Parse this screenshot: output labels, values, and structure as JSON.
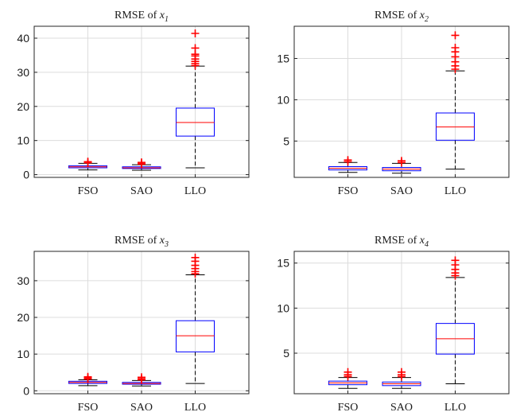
{
  "chart_data": [
    {
      "type": "box",
      "title": "RMSE of x1",
      "title_text": "RMSE of ",
      "title_var": "x",
      "title_sub": "1",
      "categories": [
        "FSO",
        "SAO",
        "LLO"
      ],
      "yticks": [
        0,
        10,
        20,
        30,
        40
      ],
      "ylim": [
        -0.8,
        43.5
      ],
      "grid": true,
      "boxes": [
        {
          "name": "FSO",
          "whisker_low": 1.4,
          "q1": 2.0,
          "median": 2.3,
          "q3": 2.6,
          "whisker_high": 3.3,
          "outliers": [
            3.5,
            3.8
          ]
        },
        {
          "name": "SAO",
          "whisker_low": 1.3,
          "q1": 1.8,
          "median": 2.0,
          "q3": 2.3,
          "whisker_high": 2.9,
          "outliers": [
            3.1,
            3.3,
            3.6
          ]
        },
        {
          "name": "LLO",
          "whisker_low": 2.0,
          "q1": 11.3,
          "median": 15.3,
          "q3": 19.5,
          "whisker_high": 31.8,
          "outliers": [
            32.0,
            32.6,
            33.2,
            33.9,
            34.8,
            35.3,
            37.1,
            41.4
          ]
        }
      ]
    },
    {
      "type": "box",
      "title": "RMSE of x2",
      "title_text": "RMSE of ",
      "title_var": "x",
      "title_sub": "2",
      "categories": [
        "FSO",
        "SAO",
        "LLO"
      ],
      "yticks": [
        5,
        10,
        15
      ],
      "ylim": [
        0.6,
        18.9
      ],
      "grid": true,
      "boxes": [
        {
          "name": "FSO",
          "whisker_low": 1.2,
          "q1": 1.5,
          "median": 1.7,
          "q3": 1.9,
          "whisker_high": 2.4,
          "outliers": [
            2.5,
            2.7
          ]
        },
        {
          "name": "SAO",
          "whisker_low": 1.1,
          "q1": 1.4,
          "median": 1.6,
          "q3": 1.8,
          "whisker_high": 2.3,
          "outliers": [
            2.4,
            2.6
          ]
        },
        {
          "name": "LLO",
          "whisker_low": 1.6,
          "q1": 5.1,
          "median": 6.7,
          "q3": 8.4,
          "whisker_high": 13.5,
          "outliers": [
            13.7,
            14.1,
            14.6,
            15.2,
            15.8,
            16.3,
            17.8
          ]
        }
      ]
    },
    {
      "type": "box",
      "title": "RMSE of x3",
      "title_text": "RMSE of ",
      "title_var": "x",
      "title_sub": "3",
      "categories": [
        "FSO",
        "SAO",
        "LLO"
      ],
      "yticks": [
        0,
        10,
        20,
        30
      ],
      "ylim": [
        -0.8,
        38.0
      ],
      "grid": true,
      "boxes": [
        {
          "name": "FSO",
          "whisker_low": 1.4,
          "q1": 2.0,
          "median": 2.3,
          "q3": 2.6,
          "whisker_high": 3.0,
          "outliers": [
            3.2,
            3.5,
            3.8
          ]
        },
        {
          "name": "SAO",
          "whisker_low": 1.3,
          "q1": 1.8,
          "median": 2.0,
          "q3": 2.3,
          "whisker_high": 2.8,
          "outliers": [
            3.0,
            3.3,
            3.7
          ]
        },
        {
          "name": "LLO",
          "whisker_low": 2.0,
          "q1": 10.6,
          "median": 15.0,
          "q3": 19.1,
          "whisker_high": 31.6,
          "outliers": [
            31.9,
            32.5,
            33.3,
            34.2,
            35.3,
            36.3
          ]
        }
      ]
    },
    {
      "type": "box",
      "title": "RMSE of x4",
      "title_text": "RMSE of ",
      "title_var": "x",
      "title_sub": "4",
      "categories": [
        "FSO",
        "SAO",
        "LLO"
      ],
      "yticks": [
        5,
        10,
        15
      ],
      "ylim": [
        0.5,
        16.3
      ],
      "grid": true,
      "boxes": [
        {
          "name": "FSO",
          "whisker_low": 1.1,
          "q1": 1.5,
          "median": 1.7,
          "q3": 1.9,
          "whisker_high": 2.3,
          "outliers": [
            2.4,
            2.6,
            2.9
          ]
        },
        {
          "name": "SAO",
          "whisker_low": 1.1,
          "q1": 1.4,
          "median": 1.6,
          "q3": 1.8,
          "whisker_high": 2.3,
          "outliers": [
            2.4,
            2.6,
            2.9
          ]
        },
        {
          "name": "LLO",
          "whisker_low": 1.6,
          "q1": 4.9,
          "median": 6.6,
          "q3": 8.3,
          "whisker_high": 13.4,
          "outliers": [
            13.6,
            13.9,
            14.3,
            14.8,
            15.3
          ]
        }
      ]
    }
  ],
  "colors": {
    "box": "#0000ff",
    "median": "#ff0000",
    "outlier": "#ff0000",
    "whisker": "#000000",
    "grid": "#dcdcdc",
    "axis": "#262626"
  }
}
